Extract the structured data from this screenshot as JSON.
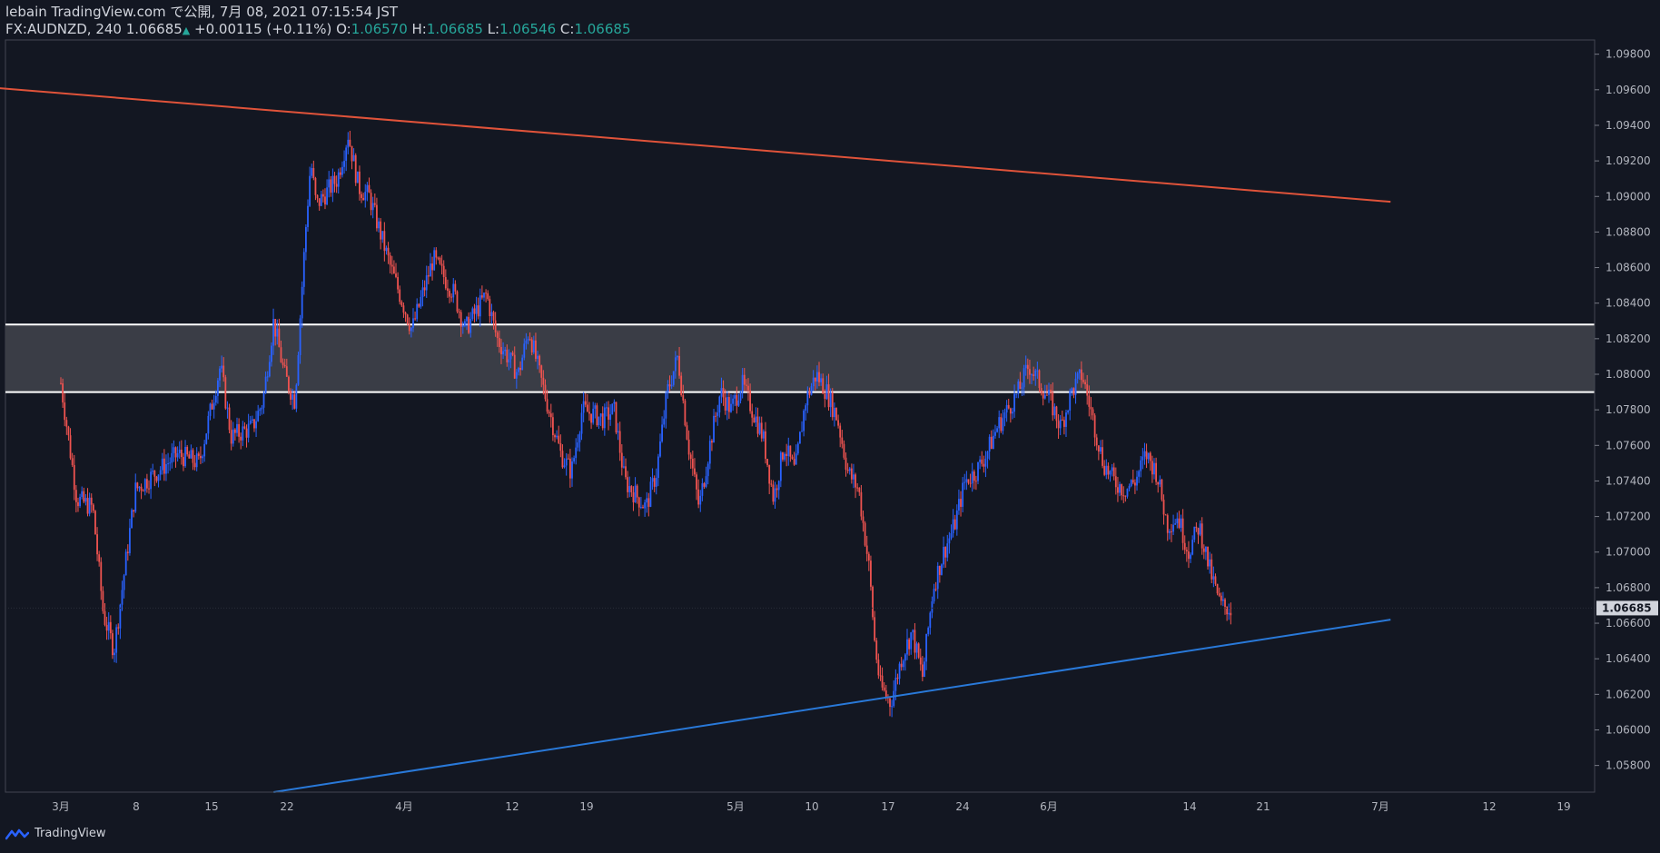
{
  "header": {
    "publish_line": "lebain TradingView.com で公開, 7月 08, 2021 07:15:54 JST",
    "symbol": "FX:AUDNZD, 240",
    "last": "1.06685",
    "change": "+0.00115 (+0.11%)",
    "o_label": "O:",
    "o_value": "1.06570",
    "h_label": "H:",
    "h_value": "1.06685",
    "l_label": "L:",
    "l_value": "1.06546",
    "c_label": "C:",
    "c_value": "1.06685"
  },
  "footer": {
    "brand": "TradingView"
  },
  "colors": {
    "background": "#131722",
    "up": "#2962ff",
    "down": "#ef5350",
    "resistance": "#e0533a",
    "support": "#2979d9",
    "zone": "#3a3d46"
  },
  "chart_data": {
    "type": "candlestick",
    "symbol": "FX:AUDNZD",
    "timeframe": "240",
    "y_range": [
      1.0565,
      1.0988
    ],
    "y_ticks": [
      "1.09800",
      "1.09600",
      "1.09400",
      "1.09200",
      "1.09000",
      "1.08800",
      "1.08600",
      "1.08400",
      "1.08200",
      "1.08000",
      "1.07800",
      "1.07600",
      "1.07400",
      "1.07200",
      "1.07000",
      "1.06800",
      "1.06600",
      "1.06400",
      "1.06200",
      "1.06000",
      "1.05800"
    ],
    "x_ticks": [
      "3月",
      "8",
      "15",
      "22",
      "4月",
      "12",
      "19",
      "5月",
      "10",
      "17",
      "24",
      "6月",
      "14",
      "21",
      "7月",
      "12",
      "19"
    ],
    "last_price_label": "1.06685",
    "last_price": 1.06685,
    "price_path": [
      {
        "d": 0,
        "p": 1.0795
      },
      {
        "d": 1.5,
        "p": 1.073
      },
      {
        "d": 3,
        "p": 1.0725
      },
      {
        "d": 4,
        "p": 1.0665
      },
      {
        "d": 5,
        "p": 1.0645
      },
      {
        "d": 7,
        "p": 1.0735
      },
      {
        "d": 9,
        "p": 1.0745
      },
      {
        "d": 11,
        "p": 1.0755
      },
      {
        "d": 13,
        "p": 1.075
      },
      {
        "d": 15,
        "p": 1.0805
      },
      {
        "d": 16,
        "p": 1.0765
      },
      {
        "d": 18,
        "p": 1.077
      },
      {
        "d": 19,
        "p": 1.0785
      },
      {
        "d": 20,
        "p": 1.083
      },
      {
        "d": 21,
        "p": 1.08
      },
      {
        "d": 22,
        "p": 1.0785
      },
      {
        "d": 23,
        "p": 1.088
      },
      {
        "d": 23.5,
        "p": 1.092
      },
      {
        "d": 24,
        "p": 1.0895
      },
      {
        "d": 26,
        "p": 1.091
      },
      {
        "d": 27,
        "p": 1.0935
      },
      {
        "d": 28,
        "p": 1.0905
      },
      {
        "d": 29,
        "p": 1.09
      },
      {
        "d": 31,
        "p": 1.086
      },
      {
        "d": 33,
        "p": 1.0825
      },
      {
        "d": 34,
        "p": 1.0845
      },
      {
        "d": 35,
        "p": 1.0865
      },
      {
        "d": 37,
        "p": 1.0845
      },
      {
        "d": 38,
        "p": 1.0825
      },
      {
        "d": 40,
        "p": 1.0845
      },
      {
        "d": 41,
        "p": 1.082
      },
      {
        "d": 43,
        "p": 1.08
      },
      {
        "d": 44,
        "p": 1.0825
      },
      {
        "d": 45,
        "p": 1.08
      },
      {
        "d": 47,
        "p": 1.0755
      },
      {
        "d": 48,
        "p": 1.0745
      },
      {
        "d": 49,
        "p": 1.078
      },
      {
        "d": 51,
        "p": 1.0775
      },
      {
        "d": 52,
        "p": 1.078
      },
      {
        "d": 53,
        "p": 1.074
      },
      {
        "d": 55,
        "p": 1.0725
      },
      {
        "d": 56,
        "p": 1.0745
      },
      {
        "d": 57,
        "p": 1.079
      },
      {
        "d": 58,
        "p": 1.081
      },
      {
        "d": 59,
        "p": 1.076
      },
      {
        "d": 60,
        "p": 1.0725
      },
      {
        "d": 61,
        "p": 1.076
      },
      {
        "d": 62,
        "p": 1.079
      },
      {
        "d": 63,
        "p": 1.078
      },
      {
        "d": 64,
        "p": 1.0795
      },
      {
        "d": 66,
        "p": 1.0765
      },
      {
        "d": 67,
        "p": 1.073
      },
      {
        "d": 68,
        "p": 1.076
      },
      {
        "d": 69,
        "p": 1.0745
      },
      {
        "d": 70,
        "p": 1.0785
      },
      {
        "d": 71,
        "p": 1.08
      },
      {
        "d": 72,
        "p": 1.079
      },
      {
        "d": 73,
        "p": 1.0775
      },
      {
        "d": 74,
        "p": 1.0745
      },
      {
        "d": 75,
        "p": 1.0735
      },
      {
        "d": 76,
        "p": 1.069
      },
      {
        "d": 76.5,
        "p": 1.065
      },
      {
        "d": 77,
        "p": 1.0625
      },
      {
        "d": 78,
        "p": 1.0615
      },
      {
        "d": 79,
        "p": 1.064
      },
      {
        "d": 80,
        "p": 1.0655
      },
      {
        "d": 81,
        "p": 1.063
      },
      {
        "d": 82,
        "p": 1.068
      },
      {
        "d": 83,
        "p": 1.07
      },
      {
        "d": 84,
        "p": 1.0715
      },
      {
        "d": 85,
        "p": 1.074
      },
      {
        "d": 86,
        "p": 1.0745
      },
      {
        "d": 87,
        "p": 1.0755
      },
      {
        "d": 88,
        "p": 1.077
      },
      {
        "d": 89,
        "p": 1.078
      },
      {
        "d": 90,
        "p": 1.079
      },
      {
        "d": 91,
        "p": 1.0805
      },
      {
        "d": 92,
        "p": 1.0795
      },
      {
        "d": 93,
        "p": 1.0785
      },
      {
        "d": 94,
        "p": 1.077
      },
      {
        "d": 95,
        "p": 1.079
      },
      {
        "d": 96,
        "p": 1.08
      },
      {
        "d": 97,
        "p": 1.0775
      },
      {
        "d": 98,
        "p": 1.075
      },
      {
        "d": 99,
        "p": 1.074
      },
      {
        "d": 100,
        "p": 1.0735
      },
      {
        "d": 101,
        "p": 1.074
      },
      {
        "d": 102,
        "p": 1.0755
      },
      {
        "d": 103,
        "p": 1.0745
      },
      {
        "d": 104,
        "p": 1.0715
      },
      {
        "d": 105,
        "p": 1.072
      },
      {
        "d": 106,
        "p": 1.07
      },
      {
        "d": 107,
        "p": 1.0715
      },
      {
        "d": 108,
        "p": 1.069
      },
      {
        "d": 109,
        "p": 1.067
      },
      {
        "d": 110,
        "p": 1.0668
      }
    ],
    "resistance_line": {
      "start": {
        "d": -8,
        "p": 1.0962
      },
      "end": {
        "d": 125,
        "p": 1.0897
      }
    },
    "support_line": {
      "start": {
        "d": 20,
        "p": 1.0565
      },
      "end": {
        "d": 125,
        "p": 1.0662
      }
    },
    "zone": {
      "top": 1.0828,
      "bottom": 1.079
    }
  }
}
